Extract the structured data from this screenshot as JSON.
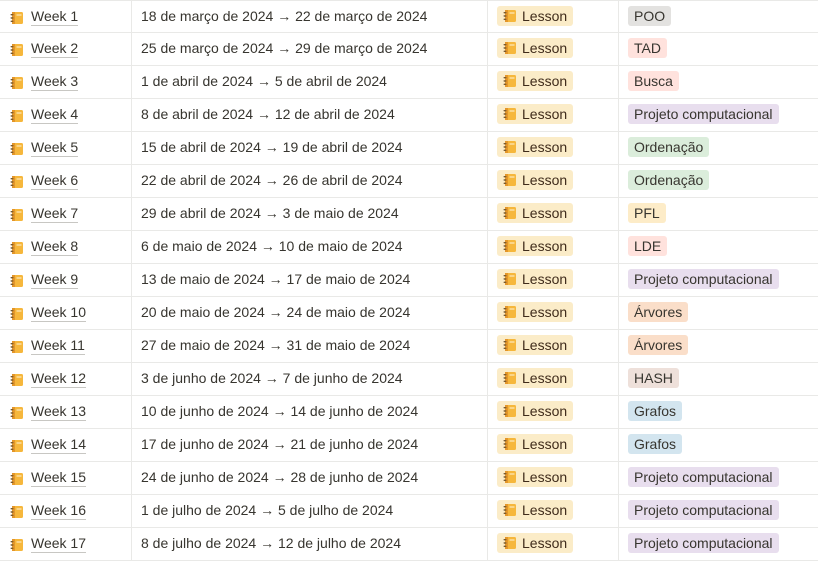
{
  "colors": {
    "gray": "#e3e2e0",
    "red": "#ffe2dd",
    "purple": "#e8deee",
    "green": "#dbeddb",
    "yellow": "#fdecc8",
    "orange": "#fadec9",
    "brown": "#eee0da",
    "blue": "#d3e5ef",
    "lesson": "#fbecc8"
  },
  "icons": {
    "page": "notebook-icon",
    "lesson": "notebook-icon"
  },
  "rows": [
    {
      "name": "Week 1",
      "date": "18 de março de 2024 → 22 de março de 2024",
      "type": "Lesson",
      "topic": "POO",
      "topic_color": "gray"
    },
    {
      "name": "Week 2",
      "date": "25 de março de 2024 → 29 de março de 2024",
      "type": "Lesson",
      "topic": "TAD",
      "topic_color": "red"
    },
    {
      "name": "Week 3",
      "date": "1 de abril de 2024 → 5 de abril de 2024",
      "type": "Lesson",
      "topic": "Busca",
      "topic_color": "red"
    },
    {
      "name": "Week 4",
      "date": "8 de abril de 2024 → 12 de abril de 2024",
      "type": "Lesson",
      "topic": "Projeto computacional",
      "topic_color": "purple"
    },
    {
      "name": "Week 5",
      "date": "15 de abril de 2024 → 19 de abril de 2024",
      "type": "Lesson",
      "topic": "Ordenação",
      "topic_color": "green"
    },
    {
      "name": "Week 6",
      "date": "22 de abril de 2024 → 26 de abril de 2024",
      "type": "Lesson",
      "topic": "Ordenação",
      "topic_color": "green"
    },
    {
      "name": "Week 7",
      "date": "29 de abril de 2024 → 3 de maio de 2024",
      "type": "Lesson",
      "topic": "PFL",
      "topic_color": "yellow"
    },
    {
      "name": "Week 8",
      "date": "6 de maio de 2024 → 10 de maio de 2024",
      "type": "Lesson",
      "topic": "LDE",
      "topic_color": "red"
    },
    {
      "name": "Week 9",
      "date": "13 de maio de 2024 → 17 de maio de 2024",
      "type": "Lesson",
      "topic": "Projeto computacional",
      "topic_color": "purple"
    },
    {
      "name": "Week 10",
      "date": "20 de maio de 2024 → 24 de maio de 2024",
      "type": "Lesson",
      "topic": "Árvores",
      "topic_color": "orange"
    },
    {
      "name": "Week 11",
      "date": "27 de maio de 2024 → 31 de maio de 2024",
      "type": "Lesson",
      "topic": "Árvores",
      "topic_color": "orange"
    },
    {
      "name": "Week 12",
      "date": "3 de junho de 2024 → 7 de junho de 2024",
      "type": "Lesson",
      "topic": "HASH",
      "topic_color": "brown"
    },
    {
      "name": "Week 13",
      "date": "10 de junho de 2024 → 14 de junho de 2024",
      "type": "Lesson",
      "topic": "Grafos",
      "topic_color": "blue"
    },
    {
      "name": "Week 14",
      "date": "17 de junho de 2024 → 21 de junho de 2024",
      "type": "Lesson",
      "topic": "Grafos",
      "topic_color": "blue"
    },
    {
      "name": "Week 15",
      "date": "24 de junho de 2024 → 28 de junho de 2024",
      "type": "Lesson",
      "topic": "Projeto computacional",
      "topic_color": "purple"
    },
    {
      "name": "Week 16",
      "date": "1 de julho de 2024 → 5 de julho de 2024",
      "type": "Lesson",
      "topic": "Projeto computacional",
      "topic_color": "purple"
    },
    {
      "name": "Week 17",
      "date": "8 de julho de 2024 → 12 de julho de 2024",
      "type": "Lesson",
      "topic": "Projeto computacional",
      "topic_color": "purple"
    }
  ]
}
